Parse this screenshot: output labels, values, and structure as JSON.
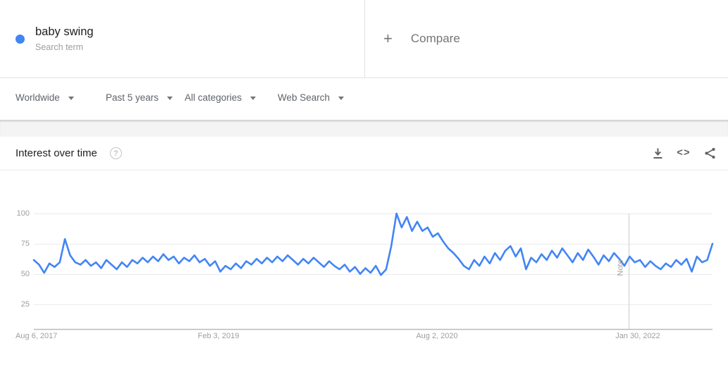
{
  "term": {
    "label": "baby swing",
    "type_label": "Search term",
    "dot_color": "#4285f4"
  },
  "compare": {
    "plus_icon": "+",
    "label": "Compare"
  },
  "filters": [
    {
      "label": "Worldwide"
    },
    {
      "label": "Past 5 years"
    },
    {
      "label": "All categories"
    },
    {
      "label": "Web Search"
    }
  ],
  "section": {
    "title": "Interest over time",
    "help_icon": "?",
    "embed_icon": "<>"
  },
  "colors": {
    "accent": "#4285f4",
    "text_muted": "#9e9e9e",
    "gridline": "#ebebeb",
    "axis_line": "#b9b9b9",
    "note_line": "#dadce0"
  },
  "chart_data": {
    "type": "line",
    "title": "Interest over time",
    "xlabel": "",
    "ylabel": "",
    "ylim": [
      0,
      100
    ],
    "grid": true,
    "y_axis": {
      "tick_labels": [
        "100",
        "75",
        "50",
        "25"
      ],
      "tick_values": [
        100,
        75,
        50,
        25
      ]
    },
    "x_axis": {
      "tick_labels": [
        "Aug 6, 2017",
        "Feb 3, 2019",
        "Aug 2, 2020",
        "Jan 30, 2022"
      ]
    },
    "annotations": [
      {
        "label": "Note",
        "x_frac": 0.877
      }
    ],
    "series": [
      {
        "name": "baby swing",
        "color": "#4285f4",
        "values": [
          60,
          56,
          49,
          57,
          54,
          58,
          78,
          64,
          58,
          56,
          60,
          55,
          58,
          53,
          60,
          56,
          52,
          58,
          54,
          60,
          57,
          62,
          58,
          63,
          59,
          65,
          60,
          63,
          57,
          62,
          59,
          64,
          58,
          61,
          55,
          59,
          50,
          55,
          52,
          57,
          53,
          59,
          56,
          61,
          57,
          62,
          58,
          63,
          59,
          64,
          60,
          56,
          61,
          57,
          62,
          58,
          54,
          59,
          55,
          52,
          56,
          50,
          54,
          48,
          53,
          49,
          55,
          47,
          52,
          72,
          100,
          88,
          97,
          85,
          93,
          85,
          88,
          80,
          83,
          76,
          70,
          66,
          61,
          55,
          52,
          60,
          55,
          63,
          57,
          66,
          60,
          68,
          72,
          63,
          70,
          52,
          62,
          58,
          65,
          60,
          68,
          62,
          70,
          64,
          58,
          66,
          60,
          69,
          63,
          56,
          64,
          59,
          66,
          61,
          55,
          63,
          58,
          60,
          54,
          59,
          55,
          52,
          57,
          54,
          60,
          56,
          61,
          50,
          63,
          58,
          60,
          74
        ]
      }
    ]
  }
}
